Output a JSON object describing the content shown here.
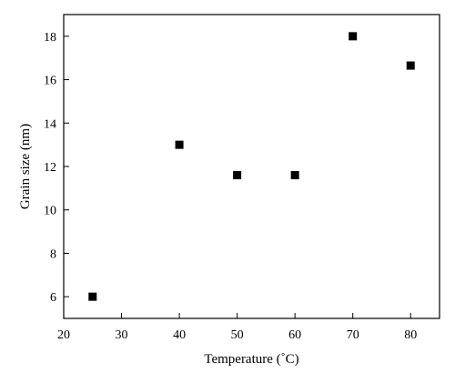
{
  "chart_data": {
    "type": "scatter",
    "title": "",
    "xlabel": "Temperature (˚C)",
    "ylabel": "Grain size (nm)",
    "xlim": [
      20,
      85
    ],
    "ylim": [
      5,
      19
    ],
    "xticks": [
      20,
      30,
      40,
      50,
      60,
      70,
      80
    ],
    "yticks": [
      6,
      8,
      10,
      12,
      14,
      16,
      18
    ],
    "x_tick_labels": [
      "20",
      "30",
      "40",
      "50",
      "60",
      "70",
      "80"
    ],
    "y_tick_labels": [
      "6",
      "8",
      "10",
      "12",
      "14",
      "16",
      "18"
    ],
    "grid": false,
    "marker": "square",
    "marker_color": "#000000",
    "series": [
      {
        "x": [
          25,
          40,
          50,
          60,
          70,
          80
        ],
        "y": [
          6.0,
          13.0,
          11.6,
          11.6,
          18.0,
          16.65
        ]
      }
    ]
  }
}
